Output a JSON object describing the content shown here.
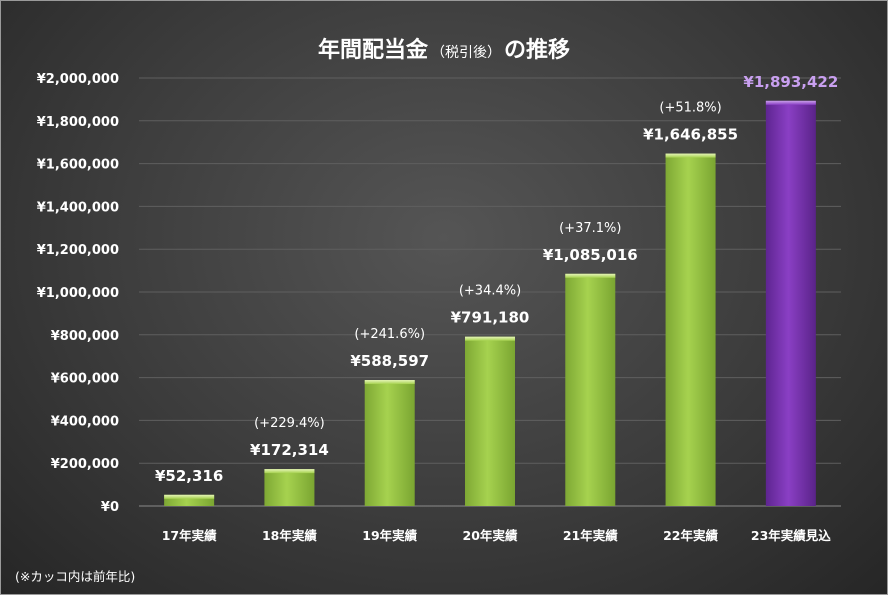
{
  "chart_data": {
    "type": "bar",
    "title": "年間配当金",
    "subtitle": "（税引後）",
    "title_suffix": "の推移",
    "categories": [
      "17年実績",
      "18年実績",
      "19年実績",
      "20年実績",
      "21年実績",
      "22年実績",
      "23年実績見込"
    ],
    "values": [
      52316,
      172314,
      588597,
      791180,
      1085016,
      1646855,
      1893422
    ],
    "value_labels": [
      "¥52,316",
      "¥172,314",
      "¥588,597",
      "¥791,180",
      "¥1,085,016",
      "¥1,646,855",
      "¥1,893,422"
    ],
    "growth_labels": [
      "",
      "(+229.4%)",
      "(+241.6%)",
      "(+34.4%)",
      "(+37.1%)",
      "(+51.8%)",
      ""
    ],
    "ylim": [
      0,
      2000000
    ],
    "yticks": [
      "¥0",
      "¥200,000",
      "¥400,000",
      "¥600,000",
      "¥800,000",
      "¥1,000,000",
      "¥1,200,000",
      "¥1,400,000",
      "¥1,600,000",
      "¥1,800,000",
      "¥2,000,000"
    ],
    "grid": true,
    "colors": {
      "actual_bar": "#92c83e",
      "forecast_bar": "#7a35b0",
      "forecast_label": "#c9a0f0"
    },
    "highlight_index": 6,
    "note": "(※カッコ内は前年比)"
  }
}
